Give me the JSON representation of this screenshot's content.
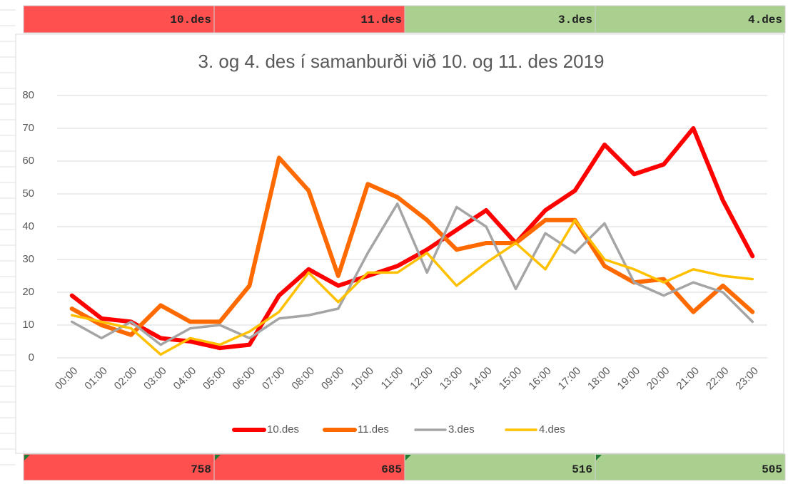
{
  "header": [
    "10.des",
    "11.des",
    "3.des",
    "4.des"
  ],
  "totals": [
    758,
    685,
    516,
    505
  ],
  "chart_data": {
    "type": "line",
    "title": "3. og 4. des í samanburði við 10. og 11. des 2019",
    "categories": [
      "00:00",
      "01:00",
      "02:00",
      "03:00",
      "04:00",
      "05:00",
      "06:00",
      "07:00",
      "08:00",
      "09:00",
      "10:00",
      "11:00",
      "12:00",
      "13:00",
      "14:00",
      "15:00",
      "16:00",
      "17:00",
      "18:00",
      "19:00",
      "20:00",
      "21:00",
      "22:00",
      "23:00"
    ],
    "series": [
      {
        "name": "10.des",
        "color": "#ff0000",
        "values": [
          19,
          12,
          11,
          6,
          5,
          3,
          4,
          19,
          27,
          22,
          25,
          28,
          33,
          39,
          45,
          35,
          45,
          51,
          65,
          56,
          59,
          70,
          48,
          31
        ]
      },
      {
        "name": "11.des",
        "color": "#ff6a00",
        "values": [
          15,
          10,
          7,
          16,
          11,
          11,
          22,
          61,
          51,
          25,
          53,
          49,
          42,
          33,
          35,
          35,
          42,
          42,
          28,
          23,
          24,
          14,
          22,
          14
        ]
      },
      {
        "name": "3.des",
        "color": "#a5a5a5",
        "values": [
          11,
          6,
          11,
          4,
          9,
          10,
          6,
          12,
          13,
          15,
          32,
          47,
          26,
          46,
          40,
          21,
          38,
          32,
          41,
          23,
          19,
          23,
          20,
          11
        ]
      },
      {
        "name": "4.des",
        "color": "#ffc000",
        "values": [
          13,
          11,
          9,
          1,
          6,
          4,
          8,
          14,
          26,
          17,
          26,
          26,
          32,
          22,
          29,
          35,
          27,
          42,
          30,
          27,
          23,
          27,
          25,
          24
        ]
      }
    ],
    "ylim": [
      0,
      80
    ],
    "yticks": [
      0,
      10,
      20,
      30,
      40,
      50,
      60,
      70,
      80
    ],
    "grid": true,
    "legend": "bottom"
  }
}
